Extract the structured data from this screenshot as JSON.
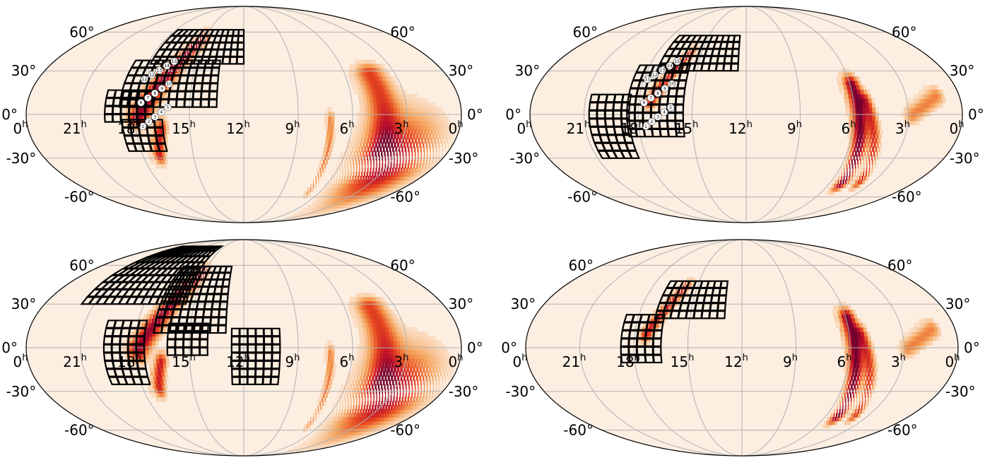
{
  "chart_data": [
    {
      "type": "heatmap",
      "projection": "mollweide",
      "ra_ticks": [
        "0",
        "21",
        "18",
        "15",
        "12",
        "9",
        "6",
        "3",
        "0"
      ],
      "ra_unit": "h",
      "dec_ticks": [
        "60°",
        "30°",
        "0°",
        "-30°",
        "-60°"
      ],
      "colormap": [
        "#fdeee2",
        "#f4a35a",
        "#e84b1f",
        "#c0102a",
        "#6f0030"
      ],
      "background_color": "#fdeee2",
      "skymap_features": [
        {
          "ra": 16.5,
          "dec": 25,
          "sigma": 5,
          "peak": 0.9,
          "kind": "arc",
          "len": 70,
          "angle": -55
        },
        {
          "ra": 16.8,
          "dec": -20,
          "sigma": 3,
          "peak": 0.7,
          "kind": "arc",
          "len": 20,
          "angle": -70
        },
        {
          "ra": 4.2,
          "dec": 0,
          "sigma": 8,
          "peak": 0.55,
          "kind": "arc",
          "len": 55,
          "angle": 80
        },
        {
          "ra": 3.0,
          "dec": -35,
          "sigma": 10,
          "peak": 0.85,
          "kind": "blob"
        },
        {
          "ra": 7.0,
          "dec": -30,
          "sigma": 2,
          "peak": 0.35,
          "kind": "arc",
          "len": 50,
          "angle": 85
        }
      ],
      "tiles": [
        {
          "ra_min": 12.0,
          "ra_max": 17.5,
          "dec_min": 35,
          "dec_max": 62
        },
        {
          "ra_min": 13.5,
          "ra_max": 18.5,
          "dec_min": 5,
          "dec_max": 35
        },
        {
          "ra_min": 17.0,
          "ra_max": 19.5,
          "dec_min": -5,
          "dec_max": 15
        },
        {
          "ra_min": 16.5,
          "ra_max": 18.5,
          "dec_min": -25,
          "dec_max": -5
        }
      ],
      "event_labels": [
        "1",
        "2",
        "3",
        "4",
        "5",
        "6",
        "7",
        "8",
        "9",
        "10",
        "11",
        "12",
        "13",
        "14",
        "15"
      ]
    },
    {
      "type": "heatmap",
      "projection": "mollweide",
      "ra_ticks": [
        "0",
        "21",
        "18",
        "15",
        "12",
        "9",
        "6",
        "3",
        "0"
      ],
      "ra_unit": "h",
      "dec_ticks": [
        "60°",
        "30°",
        "0°",
        "-30°",
        "-60°"
      ],
      "colormap": [
        "#fdeee2",
        "#f4a35a",
        "#e84b1f",
        "#c0102a",
        "#6f0030"
      ],
      "background_color": "#fdeee2",
      "skymap_features": [
        {
          "ra": 16.5,
          "dec": 25,
          "sigma": 3,
          "peak": 0.7,
          "kind": "arc",
          "len": 40,
          "angle": -55
        },
        {
          "ra": 5.5,
          "dec": -15,
          "sigma": 4,
          "peak": 1.0,
          "kind": "arc",
          "len": 70,
          "angle": 80
        },
        {
          "ra": 4.6,
          "dec": -20,
          "sigma": 3,
          "peak": 0.6,
          "kind": "arc",
          "len": 60,
          "angle": 70
        },
        {
          "ra": 2.0,
          "dec": 5,
          "sigma": 4,
          "peak": 0.35,
          "kind": "arc",
          "len": 25,
          "angle": -30
        }
      ],
      "tiles": [
        {
          "ra_min": 12.5,
          "ra_max": 17.0,
          "dec_min": 30,
          "dec_max": 55
        },
        {
          "ra_min": 15.5,
          "ra_max": 18.5,
          "dec_min": -15,
          "dec_max": 30
        },
        {
          "ra_min": 18.5,
          "ra_max": 20.5,
          "dec_min": -30,
          "dec_max": 10
        }
      ],
      "event_labels": [
        "1",
        "2",
        "3",
        "4",
        "5",
        "6",
        "7",
        "8",
        "9",
        "10",
        "11",
        "12",
        "13",
        "14",
        "15"
      ]
    },
    {
      "type": "heatmap",
      "projection": "mollweide",
      "ra_ticks": [
        "0",
        "21",
        "18",
        "15",
        "12",
        "9",
        "6",
        "3",
        "0"
      ],
      "ra_unit": "h",
      "dec_ticks": [
        "60°",
        "30°",
        "0°",
        "-30°",
        "-60°"
      ],
      "colormap": [
        "#fdeee2",
        "#f4a35a",
        "#e84b1f",
        "#c0102a",
        "#6f0030"
      ],
      "background_color": "#fdeee2",
      "skymap_features": [
        {
          "ra": 16.5,
          "dec": 25,
          "sigma": 5,
          "peak": 0.9,
          "kind": "arc",
          "len": 70,
          "angle": -55
        },
        {
          "ra": 16.8,
          "dec": -20,
          "sigma": 3,
          "peak": 0.7,
          "kind": "arc",
          "len": 20,
          "angle": -70
        },
        {
          "ra": 4.2,
          "dec": 0,
          "sigma": 8,
          "peak": 0.55,
          "kind": "arc",
          "len": 55,
          "angle": 80
        },
        {
          "ra": 3.0,
          "dec": -35,
          "sigma": 10,
          "peak": 0.85,
          "kind": "blob"
        },
        {
          "ra": 7.0,
          "dec": -30,
          "sigma": 2,
          "peak": 0.35,
          "kind": "arc",
          "len": 50,
          "angle": 85
        }
      ],
      "tiles": [
        {
          "ra_min": 15.5,
          "ra_max": 21.5,
          "dec_min": 30,
          "dec_max": 75
        },
        {
          "ra_min": 13.0,
          "ra_max": 17.0,
          "dec_min": 10,
          "dec_max": 55
        },
        {
          "ra_min": 17.5,
          "ra_max": 19.5,
          "dec_min": -25,
          "dec_max": 15
        },
        {
          "ra_min": 14.0,
          "ra_max": 16.0,
          "dec_min": -5,
          "dec_max": 15
        },
        {
          "ra_min": 10.0,
          "ra_max": 12.5,
          "dec_min": -25,
          "dec_max": 12
        }
      ],
      "event_labels": []
    },
    {
      "type": "heatmap",
      "projection": "mollweide",
      "ra_ticks": [
        "0",
        "21",
        "18",
        "15",
        "12",
        "9",
        "6",
        "3",
        "0"
      ],
      "ra_unit": "h",
      "dec_ticks": [
        "60°",
        "30°",
        "0°",
        "-30°",
        "-60°"
      ],
      "colormap": [
        "#fdeee2",
        "#f4a35a",
        "#e84b1f",
        "#c0102a",
        "#6f0030"
      ],
      "background_color": "#fdeee2",
      "skymap_features": [
        {
          "ra": 16.5,
          "dec": 25,
          "sigma": 3,
          "peak": 0.7,
          "kind": "arc",
          "len": 40,
          "angle": -55
        },
        {
          "ra": 5.5,
          "dec": -15,
          "sigma": 4,
          "peak": 1.0,
          "kind": "arc",
          "len": 70,
          "angle": 80
        },
        {
          "ra": 4.6,
          "dec": -20,
          "sigma": 3,
          "peak": 0.6,
          "kind": "arc",
          "len": 60,
          "angle": 70
        },
        {
          "ra": 2.0,
          "dec": 5,
          "sigma": 4,
          "peak": 0.35,
          "kind": "arc",
          "len": 25,
          "angle": -30
        }
      ],
      "tiles": [
        {
          "ra_min": 13.0,
          "ra_max": 17.0,
          "dec_min": 20,
          "dec_max": 45
        },
        {
          "ra_min": 16.5,
          "ra_max": 18.5,
          "dec_min": -10,
          "dec_max": 20
        }
      ],
      "event_labels": []
    }
  ]
}
